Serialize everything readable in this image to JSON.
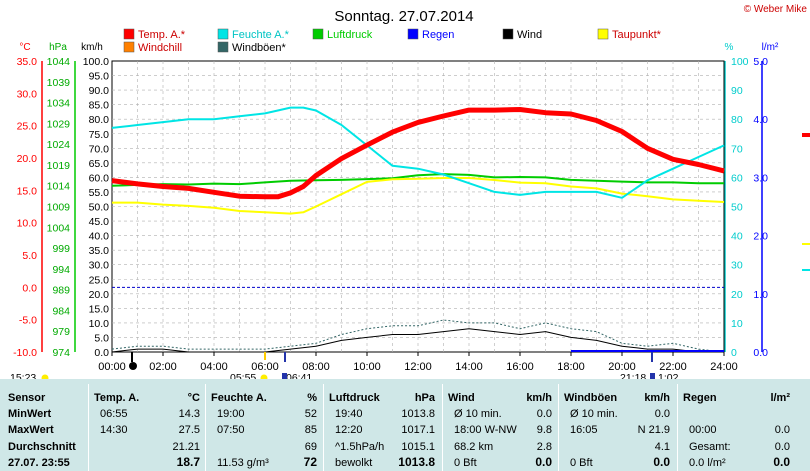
{
  "title": "Sonntag. 27.07.2014",
  "copyright": "© Weber Mike",
  "chart_data": {
    "type": "line",
    "x_ticks": [
      "00:00",
      "02:00",
      "04:00",
      "06:00",
      "08:00",
      "10:00",
      "12:00",
      "14:00",
      "16:00",
      "18:00",
      "20:00",
      "22:00",
      "24:00"
    ],
    "xlim": [
      0,
      24
    ],
    "axes": [
      {
        "unit": "°C",
        "ticks": [
          "35.0",
          "30.0",
          "25.0",
          "20.0",
          "15.0",
          "10.0",
          "5.0",
          "0.0",
          "-5.0",
          "-10.0"
        ],
        "color": "#ff0000",
        "ylim": [
          -10,
          35
        ]
      },
      {
        "unit": "hPa",
        "ticks": [
          "1044",
          "1039",
          "1034",
          "1029",
          "1024",
          "1019",
          "1014",
          "1009",
          "1004",
          "999",
          "994",
          "989",
          "984",
          "979",
          "974"
        ],
        "color": "#00aa00",
        "ylim": [
          974,
          1044
        ]
      },
      {
        "unit": "km/h",
        "ticks": [
          "100.0",
          "95.0",
          "90.0",
          "85.0",
          "80.0",
          "75.0",
          "70.0",
          "65.0",
          "60.0",
          "55.0",
          "50.0",
          "45.0",
          "40.0",
          "35.0",
          "30.0",
          "25.0",
          "20.0",
          "15.0",
          "10.0",
          "5.0",
          "0.0"
        ],
        "color": "#000000",
        "ylim": [
          0,
          100
        ]
      },
      {
        "unit": "%",
        "ticks": [
          "100",
          "90",
          "80",
          "70",
          "60",
          "50",
          "40",
          "30",
          "20",
          "10",
          "0"
        ],
        "color": "#00cccc",
        "ylim": [
          0,
          100
        ]
      },
      {
        "unit": "l/m²",
        "ticks": [
          "5.0",
          "4.0",
          "3.0",
          "2.0",
          "1.0",
          "0.0"
        ],
        "color": "#0000ff",
        "ylim": [
          0,
          5
        ]
      }
    ],
    "legend": [
      {
        "name": "Temp. A.*",
        "color": "#ff0000"
      },
      {
        "name": "Feuchte A.*",
        "color": "#00e5e5"
      },
      {
        "name": "Luftdruck",
        "color": "#00cc00"
      },
      {
        "name": "Regen",
        "color": "#0000ff"
      },
      {
        "name": "Wind",
        "color": "#000000"
      },
      {
        "name": "Taupunkt*",
        "color": "#ffff00"
      },
      {
        "name": "Windchill",
        "color": "#ff8000"
      },
      {
        "name": "Windböen*",
        "color": "#336666"
      }
    ],
    "series": [
      {
        "name": "Temp. A.*",
        "axis": 0,
        "color": "#ff0000",
        "width": 5,
        "x": [
          0,
          1,
          2,
          3,
          4,
          5,
          6,
          6.5,
          7,
          7.5,
          8,
          9,
          10,
          11,
          12,
          13,
          14,
          15,
          16,
          17,
          18,
          19,
          20,
          21,
          22,
          23,
          24
        ],
        "y": [
          16.5,
          16.0,
          15.6,
          15.3,
          14.7,
          14.1,
          14.0,
          14.0,
          14.6,
          15.6,
          17.3,
          19.9,
          22.0,
          24.0,
          25.5,
          26.5,
          27.4,
          27.4,
          27.5,
          27.0,
          26.8,
          25.8,
          24.1,
          21.5,
          19.8,
          19.0,
          18.0
        ]
      },
      {
        "name": "Feuchte A.*",
        "axis": 3,
        "color": "#00e5e5",
        "width": 2,
        "x": [
          0,
          1,
          2,
          3,
          4,
          5,
          6,
          6.5,
          7,
          7.5,
          8,
          9,
          10,
          11,
          12,
          13,
          14,
          15,
          16,
          17,
          18,
          19,
          20,
          21,
          22,
          23,
          24
        ],
        "y": [
          77,
          78,
          79,
          80,
          80,
          81,
          82,
          83,
          84,
          84,
          83,
          78,
          71,
          64,
          63,
          61,
          58,
          55,
          54,
          55,
          55,
          55,
          53,
          59,
          63,
          67,
          71
        ]
      },
      {
        "name": "Luftdruck",
        "axis": 1,
        "color": "#00cc00",
        "width": 2,
        "x": [
          0,
          1,
          2,
          3,
          4,
          5,
          6,
          7,
          8,
          9,
          10,
          11,
          12,
          13,
          14,
          15,
          16,
          17,
          18,
          19,
          20,
          21,
          22,
          23,
          24
        ],
        "y": [
          1014.0,
          1014.2,
          1014.4,
          1014.3,
          1014.5,
          1014.4,
          1014.8,
          1015.2,
          1015.3,
          1015.4,
          1015.6,
          1015.8,
          1016.5,
          1016.8,
          1016.6,
          1016.0,
          1016.1,
          1016.0,
          1015.4,
          1015.2,
          1015.0,
          1014.8,
          1014.8,
          1014.6,
          1014.6
        ]
      },
      {
        "name": "Taupunkt*",
        "axis": 0,
        "color": "#ffff00",
        "width": 2,
        "x": [
          0,
          1,
          2,
          3,
          4,
          5,
          6,
          7,
          7.5,
          8,
          9,
          10,
          11,
          12,
          13,
          14,
          15,
          16,
          17,
          18,
          19,
          20,
          21,
          22,
          23,
          24
        ],
        "y": [
          13.1,
          13.1,
          12.8,
          12.6,
          12.3,
          11.8,
          11.6,
          11.4,
          11.6,
          12.5,
          14.4,
          16.3,
          16.7,
          16.8,
          16.9,
          16.9,
          16.6,
          16.2,
          16.1,
          15.6,
          15.3,
          14.5,
          14.1,
          13.6,
          13.4,
          13.2
        ]
      },
      {
        "name": "Windchill",
        "axis": 0,
        "color": "#ff8000",
        "width": 2,
        "x": [
          0,
          1,
          2,
          3,
          4,
          5,
          6,
          7,
          8,
          9,
          10,
          11,
          12,
          13,
          14,
          15,
          16,
          17,
          18,
          19,
          20,
          21,
          22,
          23,
          24
        ],
        "y": [
          16.4,
          15.9,
          15.5,
          15.2,
          14.6,
          14.1,
          13.9,
          14.5,
          17.2,
          19.8,
          21.9,
          23.9,
          25.4,
          26.4,
          27.3,
          27.3,
          27.4,
          26.9,
          26.7,
          25.7,
          24.0,
          21.4,
          19.7,
          18.9,
          17.9
        ]
      },
      {
        "name": "Windböen*",
        "axis": 2,
        "color": "#336666",
        "width": 1,
        "dash": true,
        "x": [
          0,
          1,
          2,
          3,
          4,
          5,
          6,
          7,
          8,
          9,
          10,
          11,
          12,
          13,
          14,
          15,
          16,
          17,
          18,
          19,
          20,
          21,
          22,
          23,
          24
        ],
        "y": [
          1,
          2,
          2,
          1,
          1,
          1,
          1,
          2,
          3,
          6,
          8,
          9,
          9,
          11,
          10,
          10,
          8,
          10,
          8,
          7,
          3,
          2,
          3,
          1,
          0
        ]
      },
      {
        "name": "Wind",
        "axis": 2,
        "color": "#000000",
        "width": 1,
        "x": [
          0,
          1,
          2,
          3,
          4,
          5,
          6,
          7,
          8,
          9,
          10,
          11,
          12,
          13,
          14,
          15,
          16,
          17,
          18,
          19,
          20,
          21,
          22,
          23,
          24
        ],
        "y": [
          0,
          1,
          1,
          0,
          0,
          0,
          0,
          1,
          2,
          4,
          5,
          6,
          6,
          7,
          8,
          7,
          6,
          7,
          5,
          4,
          2,
          1,
          1,
          0,
          0
        ]
      }
    ],
    "reference_line": {
      "axis": 0,
      "value": 0.0,
      "color": "#0000cc"
    },
    "markers_below": [
      {
        "label": "15:23"
      },
      {
        "label": "05:55"
      },
      {
        "label": "06:41"
      },
      {
        "label": "21:18"
      },
      {
        "label": "1:02"
      }
    ],
    "grid": true
  },
  "table": {
    "headers": {
      "sensor": "Sensor",
      "temp": "Temp. A.",
      "temp_unit": "°C",
      "feuchte": "Feuchte A.",
      "feuchte_unit": "%",
      "luft": "Luftdruck",
      "luft_unit": "hPa",
      "wind": "Wind",
      "wind_unit": "km/h",
      "boeen": "Windböen",
      "boeen_unit": "km/h",
      "regen": "Regen",
      "regen_unit": "l/m²"
    },
    "row_labels": [
      "MinWert",
      "MaxWert",
      "Durchschnitt",
      "27.07. 23:55"
    ],
    "temp": [
      [
        "06:55",
        "14.3"
      ],
      [
        "14:30",
        "27.5"
      ],
      [
        "",
        "21.21"
      ],
      [
        "",
        "18.7"
      ]
    ],
    "feuchte": [
      [
        "19:00",
        "52"
      ],
      [
        "07:50",
        "85"
      ],
      [
        "",
        "69"
      ],
      [
        "11.53 g/m³",
        "72"
      ]
    ],
    "luft": [
      [
        "19:40",
        "1013.8"
      ],
      [
        "12:20",
        "1017.1"
      ],
      [
        "^1.5hPa/h",
        "1015.1"
      ],
      [
        "bewolkt",
        "1013.8"
      ]
    ],
    "wind": [
      [
        "Ø 10 min.",
        "0.0"
      ],
      [
        "18:00 W-NW",
        "9.8"
      ],
      [
        "68.2 km",
        "2.8"
      ],
      [
        "0 Bft",
        "0.0"
      ]
    ],
    "boeen": [
      [
        "Ø 10 min.",
        "0.0"
      ],
      [
        "16:05",
        "N 21.9"
      ],
      [
        "",
        "4.1"
      ],
      [
        "0 Bft",
        "0.0"
      ]
    ],
    "regen": [
      [
        "",
        ""
      ],
      [
        "00:00",
        "0.0"
      ],
      [
        "Gesamt:",
        "0.0"
      ],
      [
        "0.0 l/m²",
        "0.0"
      ]
    ]
  }
}
